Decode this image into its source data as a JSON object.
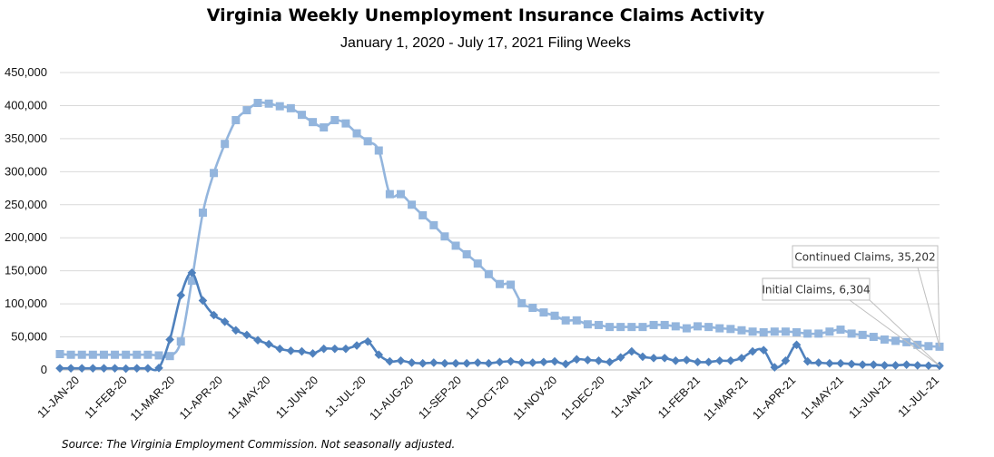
{
  "title": "Virginia Weekly Unemployment Insurance Claims Activity",
  "subtitle": "January 1, 2020 - July 17, 2021 Filing Weeks",
  "source": "Source: The Virginia Employment Commission. Not seasonally adjusted.",
  "chart_data": {
    "type": "line",
    "ylim": [
      0,
      450000
    ],
    "yticks": [
      0,
      50000,
      100000,
      150000,
      200000,
      250000,
      300000,
      350000,
      400000,
      450000
    ],
    "ytick_labels": [
      "0",
      "50,000",
      "100,000",
      "150,000",
      "200,000",
      "250,000",
      "300,000",
      "350,000",
      "400,000",
      "450,000"
    ],
    "xtick_labels": [
      "11-JAN-20",
      "11-FEB-20",
      "11-MAR-20",
      "11-APR-20",
      "11-MAY-20",
      "11-JUN-20",
      "11-JUL-20",
      "11-AUG-20",
      "11-SEP-20",
      "11-OCT-20",
      "11-NOV-20",
      "11-DEC-20",
      "11-JAN-21",
      "11-FEB-21",
      "11-MAR-21",
      "11-APR-21",
      "11-MAY-21",
      "11-JUN-21",
      "11-JUL-21"
    ],
    "grid": true,
    "legend": "none",
    "series": [
      {
        "name": "Continued Claims",
        "color": "#93b5dd",
        "marker": "square",
        "values": [
          24000,
          23000,
          23000,
          23000,
          23000,
          23000,
          23000,
          23000,
          23000,
          22000,
          21000,
          43000,
          135000,
          238000,
          298000,
          342000,
          378000,
          393000,
          404000,
          403000,
          399000,
          396000,
          386000,
          375000,
          367000,
          378000,
          373000,
          358000,
          346000,
          332000,
          266000,
          266000,
          250000,
          234000,
          219000,
          202000,
          188000,
          175000,
          161000,
          145000,
          130000,
          129000,
          101000,
          94000,
          87000,
          82000,
          75000,
          75000,
          69000,
          68000,
          65000,
          65000,
          65000,
          65000,
          68000,
          68000,
          66000,
          63000,
          66000,
          65000,
          63000,
          62000,
          60000,
          58000,
          57000,
          58000,
          58000,
          57000,
          55000,
          55000,
          58000,
          61000,
          55000,
          53000,
          50000,
          46000,
          44000,
          42000,
          38000,
          36000,
          35202
        ]
      },
      {
        "name": "Initial Claims",
        "color": "#4f81bd",
        "marker": "diamond",
        "values": [
          2500,
          2500,
          2500,
          2500,
          2500,
          2500,
          2000,
          2500,
          2500,
          3000,
          46000,
          113000,
          147000,
          105000,
          83000,
          73000,
          60000,
          53000,
          45000,
          39000,
          32000,
          29000,
          28000,
          25000,
          32000,
          32000,
          32000,
          37000,
          43000,
          23000,
          13000,
          14000,
          11000,
          10000,
          11000,
          10000,
          10000,
          10000,
          11000,
          10000,
          12000,
          13000,
          11000,
          11000,
          12000,
          13000,
          9000,
          16000,
          15000,
          14000,
          12000,
          19000,
          28000,
          20000,
          18000,
          18000,
          14000,
          15000,
          12000,
          12000,
          14000,
          14000,
          18000,
          28000,
          30000,
          4000,
          14000,
          38000,
          13000,
          11000,
          10000,
          10000,
          9000,
          8000,
          8000,
          7000,
          7000,
          8000,
          7000,
          6500,
          6304
        ]
      }
    ],
    "annotations": [
      {
        "text": "Continued Claims, 35,202",
        "series": "Continued Claims",
        "index": 80
      },
      {
        "text": "Initial Claims, 6,304",
        "series": "Initial Claims",
        "index": 80
      }
    ]
  }
}
